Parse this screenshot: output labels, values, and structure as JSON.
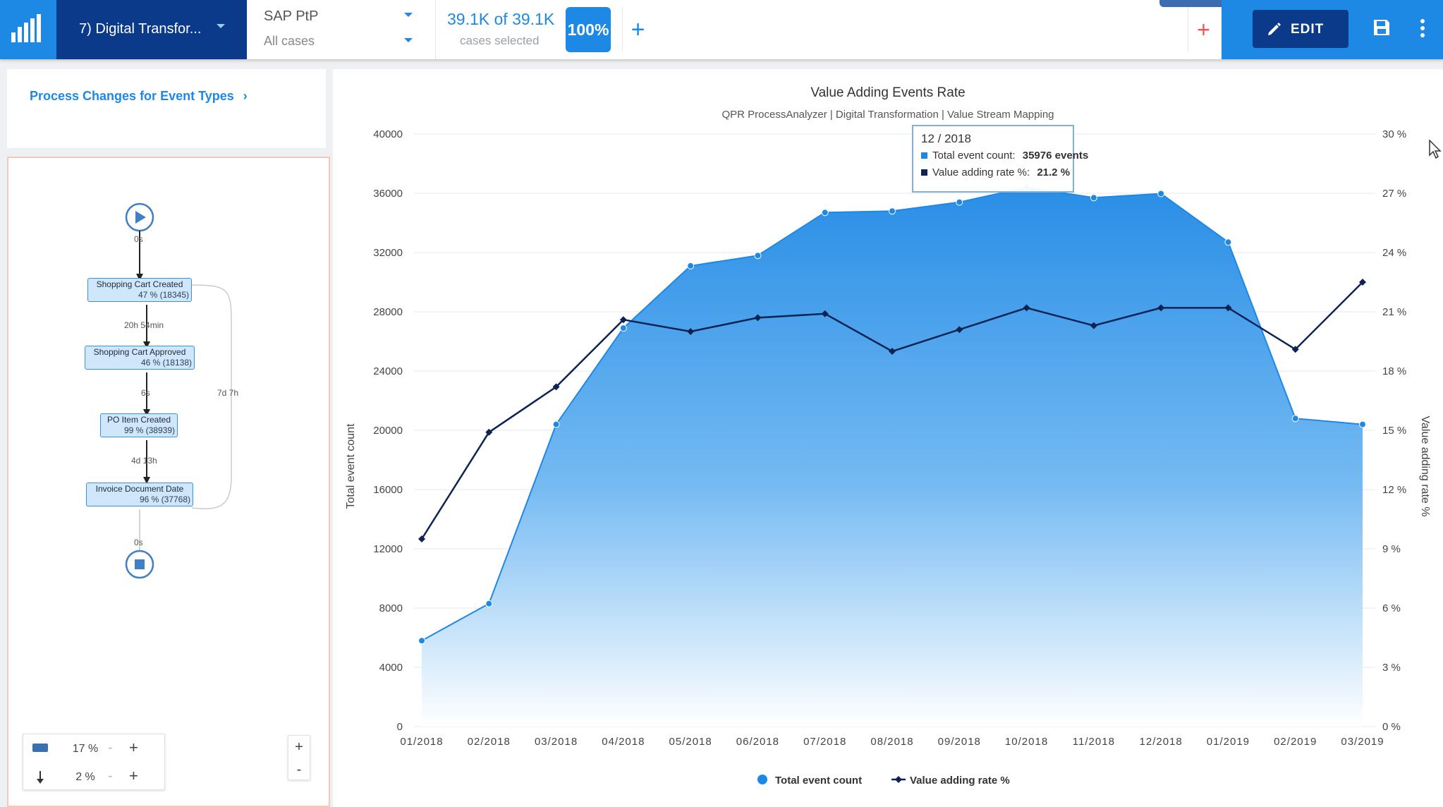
{
  "app": {
    "model_name": "7) Digital Transfor...",
    "filter_title": "SAP PtP",
    "filter_subtitle": "All cases",
    "cases_count": "39.1K of 39.1K",
    "cases_label": "cases selected",
    "cases_percent": "100%",
    "add_filter_symbol": "+",
    "add_red_symbol": "+",
    "edit_label": "EDIT"
  },
  "left": {
    "link_label": "Process Changes for Event Types",
    "link_chevron": "›",
    "nodes": [
      {
        "name": "Shopping Cart Created",
        "stat": "47 % (18345)"
      },
      {
        "name": "Shopping Cart Approved",
        "stat": "46 % (18138)"
      },
      {
        "name": "PO Item Created",
        "stat": "99 % (38939)"
      },
      {
        "name": "Invoice Document Date",
        "stat": "96 % (37768)"
      }
    ],
    "edge_labels": [
      "0s",
      "20h 54min",
      "6s",
      "4d 13h",
      "0s",
      "7d 7h"
    ],
    "activities_slider": "17 %",
    "paths_slider": "2 %",
    "slider_minus": "-",
    "slider_plus": "+",
    "zoom_in": "+",
    "zoom_out": "-"
  },
  "chart_data": {
    "type": "area",
    "title": "Value Adding Events Rate",
    "subtitle": "QPR ProcessAnalyzer | Digital Transformation | Value Stream Mapping",
    "ylabel": "Total event count",
    "y2label": "Value adding rate %",
    "categories": [
      "01/2018",
      "02/2018",
      "03/2018",
      "04/2018",
      "05/2018",
      "06/2018",
      "07/2018",
      "08/2018",
      "09/2018",
      "10/2018",
      "11/2018",
      "12/2018",
      "01/2019",
      "02/2019",
      "03/2019"
    ],
    "ylim": [
      0,
      40000
    ],
    "y_ticks": [
      "0",
      "4000",
      "8000",
      "12000",
      "16000",
      "20000",
      "24000",
      "28000",
      "32000",
      "36000",
      "40000"
    ],
    "y2lim": [
      0,
      30
    ],
    "y2_ticks": [
      "0 %",
      "3 %",
      "6 %",
      "9 %",
      "12 %",
      "15 %",
      "18 %",
      "21 %",
      "24 %",
      "27 %",
      "30 %"
    ],
    "grid": true,
    "legend_position": "bottom",
    "series": [
      {
        "name": "Total event count",
        "kind": "area",
        "axis": "left",
        "color": "#1e88e5",
        "values": [
          5800,
          8300,
          20400,
          26900,
          31100,
          31800,
          34700,
          34800,
          35400,
          36400,
          35700,
          35976,
          32700,
          20800,
          20400
        ]
      },
      {
        "name": "Value adding rate %",
        "kind": "line",
        "axis": "right",
        "color": "#0d2354",
        "values": [
          9.5,
          14.9,
          17.2,
          20.6,
          20.0,
          20.7,
          20.9,
          19.0,
          20.1,
          21.2,
          20.3,
          21.2,
          21.2,
          19.1,
          22.5
        ]
      }
    ],
    "tooltip": {
      "title": "12 / 2018",
      "label1": "Total event count:",
      "value1": "35976 events",
      "label2": "Value adding rate %:",
      "value2": "21.2 %"
    }
  },
  "colors": {
    "brand_dark": "#0b3a8a",
    "brand_blue": "#1e88e5",
    "line_dark": "#0d2354",
    "alert_red": "#ef5350"
  }
}
